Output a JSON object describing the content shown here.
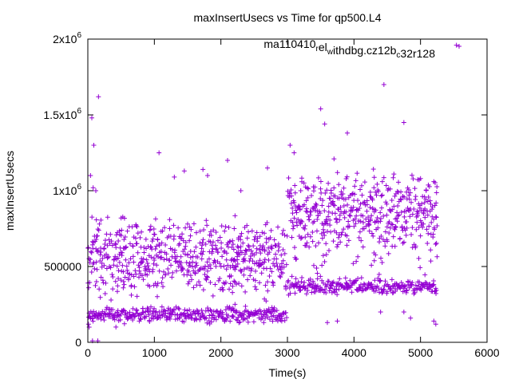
{
  "chart_data": {
    "type": "scatter",
    "title": "maxInsertUsecs vs Time for qp500.L4",
    "xlabel": "Time(s)",
    "ylabel": "maxInsertUsecs",
    "xlim": [
      0,
      6000
    ],
    "ylim": [
      0,
      2000000
    ],
    "x_ticks": [
      0,
      1000,
      2000,
      3000,
      4000,
      5000,
      6000
    ],
    "x_tick_labels": [
      "0",
      "1000",
      "2000",
      "3000",
      "4000",
      "5000",
      "6000"
    ],
    "y_ticks": [
      0,
      500000,
      1000000,
      1500000,
      2000000
    ],
    "y_tick_labels": [
      {
        "base": "0",
        "exp": ""
      },
      {
        "base": "500000",
        "exp": ""
      },
      {
        "base": "1x10",
        "exp": "6"
      },
      {
        "base": "1.5x10",
        "exp": "6"
      },
      {
        "base": "2x10",
        "exp": "6"
      }
    ],
    "grid": false,
    "legend_position": "top-right",
    "marker": "+",
    "series": [
      {
        "name": "ma110410relwithdbg.cz12bc32r128",
        "legend_parts": [
          {
            "text": "ma110410",
            "sub": false
          },
          {
            "text": "r",
            "sub": true
          },
          {
            "text": "el",
            "sub": false
          },
          {
            "text": "w",
            "sub": true
          },
          {
            "text": "ithdbg.cz12b",
            "sub": false
          },
          {
            "text": "c",
            "sub": true
          },
          {
            "text": "32r128",
            "sub": false
          }
        ],
        "color": "#9400d3",
        "segments": [
          {
            "x_start": 0,
            "x_end": 3000,
            "dx": 10,
            "bands": [
              {
                "center": 180000,
                "spread": 25000,
                "density": 1.2
              },
              {
                "center": 520000,
                "spread": 95000,
                "density": 1.6
              },
              {
                "center": 700000,
                "spread": 60000,
                "density": 0.5
              }
            ]
          },
          {
            "x_start": 3000,
            "x_end": 5250,
            "dx": 10,
            "bands": [
              {
                "center": 370000,
                "spread": 22000,
                "density": 1.2
              },
              {
                "center": 880000,
                "spread": 120000,
                "density": 1.8
              },
              {
                "center": 650000,
                "spread": 90000,
                "density": 0.4
              }
            ]
          }
        ],
        "outliers": [
          [
            60,
            1480000
          ],
          [
            90,
            1300000
          ],
          [
            160,
            1620000
          ],
          [
            40,
            1100000
          ],
          [
            80,
            1020000
          ],
          [
            120,
            1000000
          ],
          [
            10,
            120000
          ],
          [
            20,
            100000
          ],
          [
            70,
            10000
          ],
          [
            150,
            10000
          ],
          [
            100,
            700000
          ],
          [
            130,
            400000
          ],
          [
            1070,
            1250000
          ],
          [
            1300,
            1090000
          ],
          [
            1450,
            1130000
          ],
          [
            1730,
            1140000
          ],
          [
            1800,
            1100000
          ],
          [
            2100,
            1200000
          ],
          [
            2300,
            1000000
          ],
          [
            2700,
            1150000
          ],
          [
            3040,
            1300000
          ],
          [
            3100,
            1250000
          ],
          [
            3500,
            1540000
          ],
          [
            3560,
            1440000
          ],
          [
            3700,
            1210000
          ],
          [
            3900,
            1380000
          ],
          [
            4450,
            1700000
          ],
          [
            4750,
            1450000
          ],
          [
            4600,
            1110000
          ],
          [
            5000,
            1080000
          ],
          [
            5200,
            1060000
          ],
          [
            3600,
            130000
          ],
          [
            3750,
            140000
          ],
          [
            4750,
            200000
          ],
          [
            4850,
            160000
          ],
          [
            5200,
            140000
          ],
          [
            5230,
            120000
          ],
          [
            4400,
            200000
          ],
          [
            5540,
            1960000
          ],
          [
            2200,
            750000
          ],
          [
            1500,
            780000
          ],
          [
            500,
            820000
          ],
          [
            1230,
            750000
          ],
          [
            3200,
            1000000
          ],
          [
            4300,
            1020000
          ],
          [
            3850,
            900000
          ]
        ]
      }
    ]
  }
}
